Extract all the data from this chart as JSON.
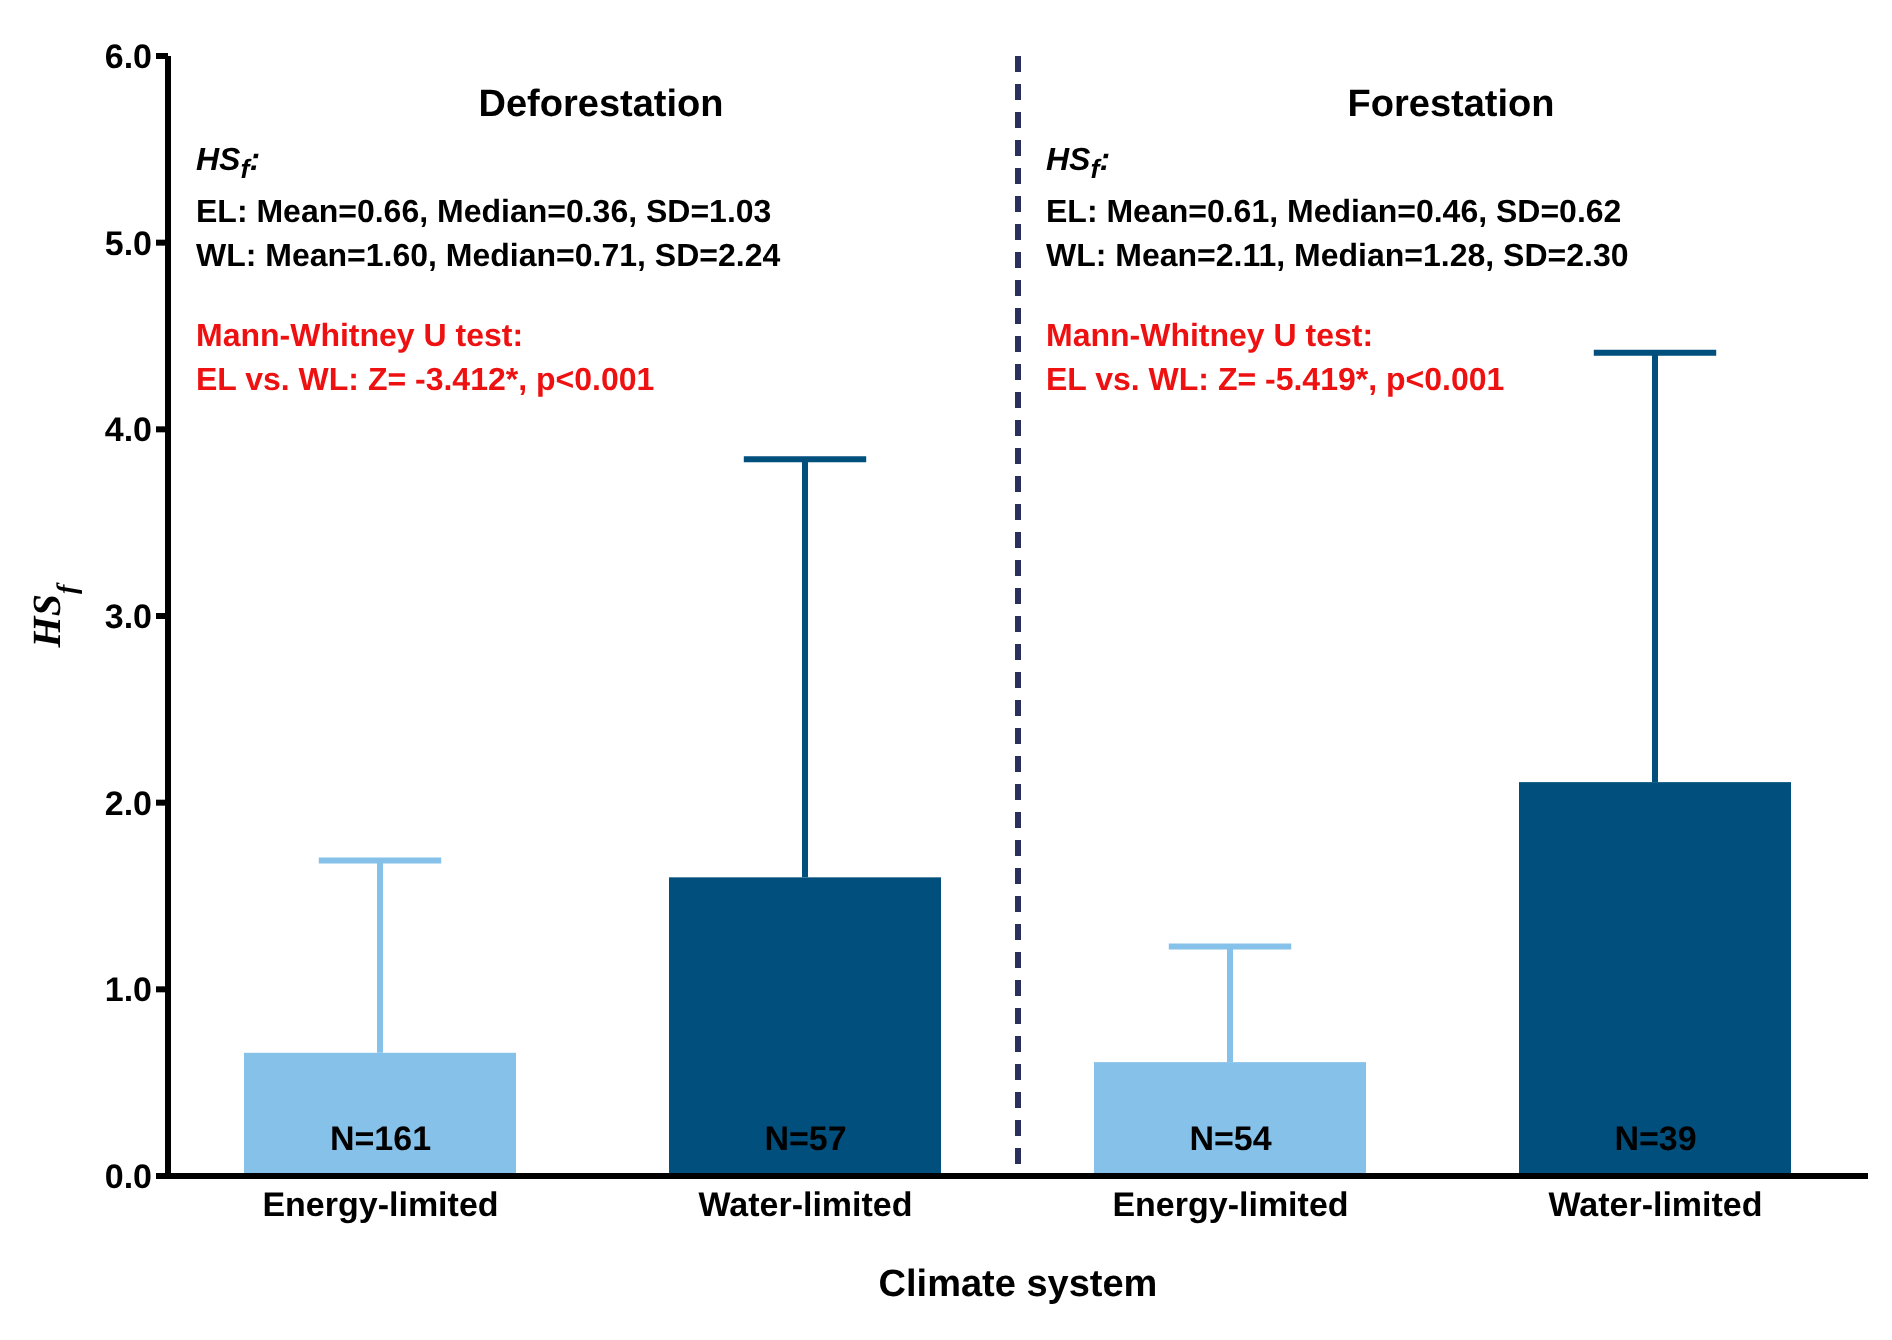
{
  "chart_data": {
    "type": "bar",
    "categories": [
      "Energy-limited",
      "Water-limited",
      "Energy-limited",
      "Water-limited"
    ],
    "values": [
      0.66,
      1.6,
      0.61,
      2.11
    ],
    "colors": [
      "#85c1e9",
      "#004f7c",
      "#85c1e9",
      "#004f7c"
    ],
    "errors": [
      [
        0.66,
        1.69
      ],
      [
        1.6,
        3.84
      ],
      [
        0.61,
        1.23
      ],
      [
        2.11,
        4.41
      ]
    ],
    "ylim": [
      0,
      6
    ],
    "yticks": [
      {
        "value": 0,
        "label": "0.0"
      },
      {
        "value": 1,
        "label": "1.0"
      },
      {
        "value": 2,
        "label": "2.0"
      },
      {
        "value": 3,
        "label": "3.0"
      },
      {
        "value": 4,
        "label": "4.0"
      },
      {
        "value": 5,
        "label": "5.0"
      },
      {
        "value": 6,
        "label": "6.0"
      }
    ],
    "xlabel": "Climate system",
    "ylabel": "HS$_{f}$",
    "grid": false,
    "legend": false,
    "annotations": [
      "Deforestation",
      "HS$_{f}$:",
      "EL:  Mean=0.66, Median=0.36, SD=1.03",
      "WL: Mean=1.60, Median=0.71, SD=2.24",
      "Mann-Whitney U test:",
      "EL vs. WL: Z= -3.412*, p<0.001",
      "Forestation",
      "HS$_{f}$:",
      "EL:  Mean=0.61, Median=0.46, SD=0.62",
      "WL: Mean=2.11, Median=1.28, SD=2.30",
      "Mann-Whitney U test:",
      "EL vs. WL: Z= -5.419*, p<0.001",
      "N=161",
      "N=57",
      "N=54",
      "N=39"
    ]
  }
}
